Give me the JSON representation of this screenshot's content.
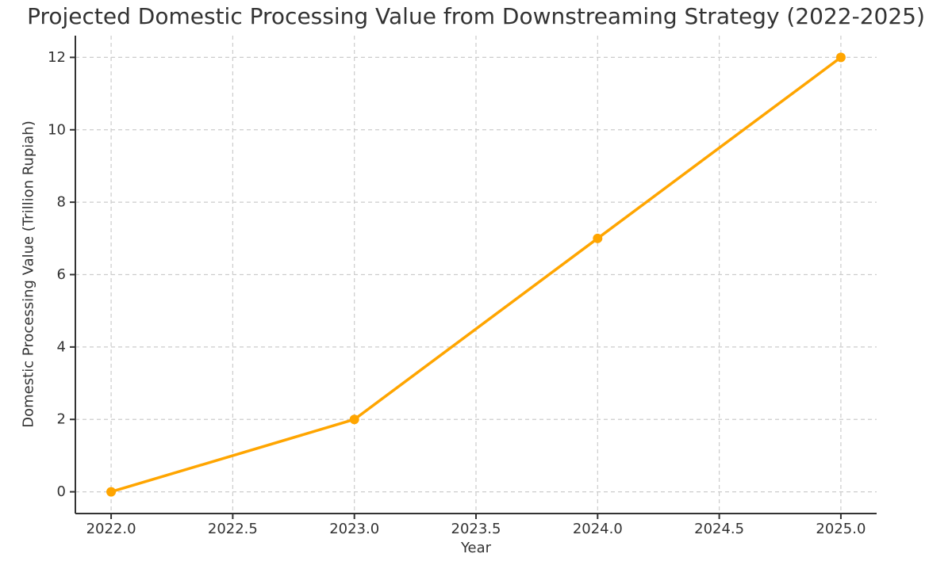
{
  "chart_data": {
    "type": "line",
    "title": "Projected Domestic Processing Value from Downstreaming Strategy (2022-2025)",
    "xlabel": "Year",
    "ylabel": "Domestic Processing Value (Trillion Rupiah)",
    "x": [
      2022,
      2023,
      2024,
      2025
    ],
    "values": [
      0,
      2,
      7,
      12
    ],
    "xticks": [
      2022.0,
      2022.5,
      2023.0,
      2023.5,
      2024.0,
      2024.5,
      2025.0
    ],
    "xtick_labels": [
      "2022.0",
      "2022.5",
      "2023.0",
      "2023.5",
      "2024.0",
      "2024.5",
      "2025.0"
    ],
    "yticks": [
      0,
      2,
      4,
      6,
      8,
      10,
      12
    ],
    "ytick_labels": [
      "0",
      "2",
      "4",
      "6",
      "8",
      "10",
      "12"
    ],
    "xlim": [
      2021.853,
      2025.147
    ],
    "ylim": [
      -0.6,
      12.6
    ],
    "grid": true,
    "grid_style": "dashed",
    "legend": false,
    "line_color": "#FFA500",
    "marker": "circle",
    "marker_radius": 6,
    "line_width": 3.5,
    "grid_color": "#cccccc",
    "axis_color": "#333333",
    "text_color": "#333333",
    "tick_font_size": 18
  }
}
